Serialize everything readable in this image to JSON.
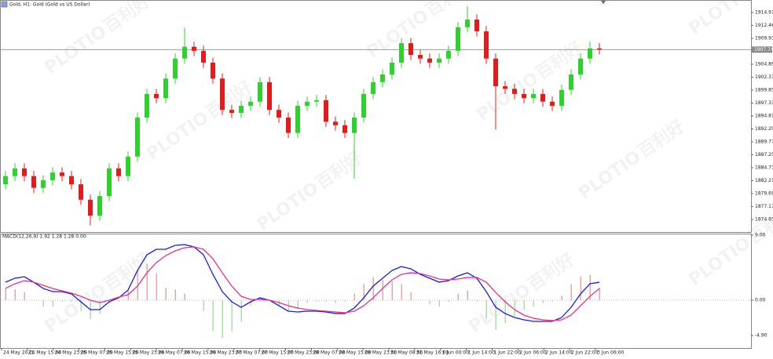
{
  "chart_data": {
    "type": "candlestick",
    "title": "Gold, H1:  Gold (Gold vs US Dollar)",
    "watermark": [
      "PLOTIO",
      "百利好"
    ],
    "up_color": "#2fd12f",
    "down_color": "#e01c1c",
    "ylim": [
      1872.2,
      1917.1
    ],
    "yticks": [
      1914.97,
      1912.46,
      1909.93,
      1904.89,
      1902.37,
      1899.85,
      1897.33,
      1894.81,
      1892.29,
      1889.77,
      1887.25,
      1884.73,
      1882.21,
      1879.69,
      1877.17,
      1874.65
    ],
    "current_price": 1907.74,
    "x_labels": [
      "24 May 2021",
      "24 May 15:00",
      "24 May 23:00",
      "25 May 07:00",
      "25 May 15:00",
      "25 May 23:00",
      "26 May 07:00",
      "26 May 15:00",
      "26 May 23:00",
      "27 May 07:00",
      "27 May 15:00",
      "27 May 23:00",
      "28 May 07:00",
      "28 May 15:00",
      "28 May 23:00",
      "31 May 08:00",
      "31 May 16:00",
      "1 Jun 00:00",
      "1 Jun 14:00",
      "1 Jun 22:00",
      "2 Jun 06:00",
      "2 Jun 14:00",
      "2 Jun 22:00",
      "3 Jun 06:00"
    ],
    "open": [
      1881.5,
      1883.1,
      1884.6,
      1883.1,
      1880.8,
      1882.3,
      1883.8,
      1883.1,
      1881.5,
      1878.5,
      1875.4,
      1879.2,
      1884.6,
      1883.1,
      1886.9,
      1894.5,
      1899.1,
      1898.3,
      1902.1,
      1906.0,
      1908.3,
      1907.5,
      1905.2,
      1902.1,
      1896.0,
      1895.4,
      1896.8,
      1897.6,
      1901.4,
      1896.0,
      1894.5,
      1891.5,
      1896.8,
      1897.6,
      1897.9,
      1893.7,
      1893.0,
      1891.5,
      1894.5,
      1899.1,
      1901.4,
      1902.9,
      1905.2,
      1909.0,
      1906.7,
      1906.0,
      1905.2,
      1906.0,
      1907.5,
      1912.1,
      1913.6,
      1911.3,
      1906.0,
      1900.6,
      1900.1,
      1899.1,
      1898.3,
      1899.1,
      1897.6,
      1896.8,
      1899.9,
      1902.9,
      1906.0,
      1908.0
    ],
    "high": [
      1884.1,
      1885.6,
      1885.6,
      1884.1,
      1883.3,
      1884.8,
      1884.8,
      1884.1,
      1882.5,
      1879.5,
      1880.2,
      1885.6,
      1885.6,
      1887.9,
      1895.5,
      1900.1,
      1900.1,
      1903.1,
      1907.0,
      1912.0,
      1909.3,
      1908.5,
      1906.2,
      1903.1,
      1897.0,
      1897.8,
      1898.6,
      1902.4,
      1902.4,
      1897.0,
      1895.5,
      1897.8,
      1898.6,
      1898.9,
      1898.9,
      1894.7,
      1894.0,
      1895.5,
      1900.1,
      1902.4,
      1903.9,
      1906.2,
      1910.0,
      1910.0,
      1907.7,
      1907.0,
      1907.0,
      1908.5,
      1913.1,
      1916.2,
      1914.6,
      1912.3,
      1907.0,
      1901.6,
      1901.1,
      1900.1,
      1900.1,
      1900.1,
      1898.6,
      1900.9,
      1903.9,
      1907.0,
      1909.3,
      1909.0
    ],
    "low": [
      1880.5,
      1882.1,
      1882.1,
      1879.8,
      1879.8,
      1881.3,
      1882.1,
      1880.5,
      1877.5,
      1873.5,
      1874.4,
      1878.2,
      1882.1,
      1882.1,
      1885.9,
      1893.5,
      1897.3,
      1897.3,
      1901.1,
      1905.0,
      1906.5,
      1904.2,
      1901.1,
      1895.0,
      1894.4,
      1894.4,
      1895.8,
      1896.6,
      1895.0,
      1893.5,
      1890.5,
      1890.5,
      1895.8,
      1896.6,
      1892.7,
      1892.0,
      1890.5,
      1882.6,
      1893.5,
      1898.1,
      1900.4,
      1901.9,
      1904.2,
      1905.7,
      1905.0,
      1904.2,
      1904.2,
      1905.0,
      1906.5,
      1911.1,
      1910.3,
      1905.0,
      1892.2,
      1899.1,
      1898.1,
      1897.3,
      1897.3,
      1896.6,
      1895.8,
      1895.8,
      1898.9,
      1901.9,
      1905.0,
      1906.8
    ],
    "close": [
      1883.1,
      1884.6,
      1883.1,
      1880.8,
      1882.3,
      1883.8,
      1883.1,
      1881.5,
      1878.5,
      1875.4,
      1879.2,
      1884.6,
      1883.1,
      1886.9,
      1894.5,
      1899.1,
      1898.3,
      1902.1,
      1906.0,
      1908.3,
      1907.5,
      1905.2,
      1902.1,
      1896.0,
      1895.4,
      1896.8,
      1897.6,
      1901.4,
      1896.0,
      1894.5,
      1891.5,
      1896.8,
      1897.6,
      1897.9,
      1893.7,
      1893.0,
      1891.5,
      1894.5,
      1899.1,
      1901.4,
      1902.9,
      1905.2,
      1909.0,
      1906.7,
      1906.0,
      1905.2,
      1906.0,
      1907.5,
      1912.1,
      1913.6,
      1911.3,
      1906.0,
      1900.6,
      1900.1,
      1899.1,
      1898.3,
      1899.1,
      1897.6,
      1896.8,
      1899.9,
      1902.9,
      1906.0,
      1908.0,
      1907.8
    ],
    "macd": {
      "label": "MACD(12,26,9) 1.92 1.28 1.28 0.00",
      "ylim": [
        -6.62,
        9.22
      ],
      "yticks": [
        {
          "value": 9,
          "label": "9.00"
        },
        {
          "value": 0,
          "label": "0.00"
        },
        {
          "value": -4.9,
          "label": "-4.90"
        }
      ],
      "hist_up_color": "#f4a0a0",
      "hist_down_color": "#9bea9b",
      "histogram": [
        1.7,
        1.5,
        1.1,
        0,
        -0.9,
        -0.9,
        -0.2,
        -0.2,
        -1.5,
        -2.6,
        -1.9,
        -0.4,
        -0.2,
        1.3,
        4.3,
        5.0,
        3.7,
        1.7,
        1.5,
        0.9,
        0,
        -1.5,
        -4.3,
        -5.2,
        -4.3,
        -3.0,
        -0.7,
        0.4,
        0,
        -0.9,
        -1.5,
        -1.1,
        -0.4,
        -0.2,
        -0.2,
        -0.4,
        -0.2,
        0.9,
        2.2,
        3.2,
        2.8,
        2.6,
        2.2,
        1.1,
        0,
        -0.6,
        -0.9,
        -0.2,
        0.9,
        1.3,
        -0.2,
        -2.6,
        -4.1,
        -3.2,
        -2.2,
        -1.3,
        -0.9,
        -0.4,
        -0.2,
        0.6,
        2.2,
        3.3,
        3.5,
        1.7
      ],
      "series": [
        {
          "color": "#1a1ae6",
          "values": [
            2.49,
            3.04,
            3.25,
            2.49,
            1.63,
            1.19,
            1.19,
            0.87,
            -0.22,
            -1.3,
            -1.3,
            -0.22,
            0.33,
            1.41,
            4.12,
            6.29,
            7.05,
            7.05,
            7.59,
            7.7,
            7.38,
            6.29,
            3.58,
            1.19,
            -0.22,
            -0.98,
            -0.22,
            0.33,
            0,
            -0.76,
            -1.52,
            -1.63,
            -1.52,
            -1.52,
            -1.63,
            -1.84,
            -1.84,
            -1.08,
            0.33,
            1.95,
            3.04,
            4.12,
            4.66,
            4.34,
            3.58,
            3.04,
            2.49,
            2.71,
            3.36,
            3.8,
            3.04,
            1.19,
            -0.98,
            -1.84,
            -2.39,
            -2.71,
            -2.93,
            -2.93,
            -2.93,
            -2.39,
            -0.98,
            0.87,
            2.28,
            2.49
          ]
        },
        {
          "color": "#e6338c",
          "values": [
            1.63,
            2.28,
            2.71,
            2.49,
            2.06,
            1.63,
            1.3,
            0.98,
            0.54,
            0,
            -0.33,
            0,
            0.43,
            0.76,
            1.95,
            3.8,
            5.21,
            6.18,
            6.83,
            7.27,
            7.38,
            7.05,
            5.75,
            3.8,
            1.95,
            0.54,
            0.11,
            0.11,
            0,
            -0.33,
            -0.76,
            -1.08,
            -1.3,
            -1.41,
            -1.52,
            -1.63,
            -1.74,
            -1.52,
            -0.76,
            0.33,
            1.63,
            2.82,
            3.58,
            3.8,
            3.69,
            3.36,
            2.93,
            2.82,
            2.93,
            3.15,
            3.15,
            2.49,
            1.08,
            -0.22,
            -1.3,
            -2.06,
            -2.49,
            -2.71,
            -2.82,
            -2.71,
            -2.06,
            -0.76,
            0.54,
            1.63
          ]
        }
      ]
    }
  }
}
